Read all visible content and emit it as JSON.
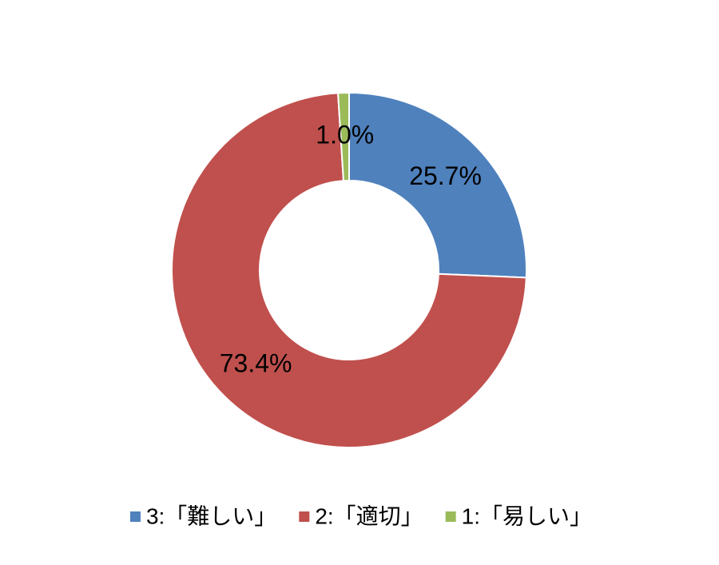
{
  "chart_data": {
    "type": "donut",
    "categories": [
      "3:「難しい」",
      "2:「適切」",
      "1:「易しい」"
    ],
    "values": [
      25.7,
      73.4,
      1.0
    ],
    "value_labels": [
      "25.7%",
      "73.4%",
      "1.0%"
    ],
    "colors": [
      "#4f81bd",
      "#c0504d",
      "#9bbb59"
    ],
    "legend": "bottom"
  }
}
